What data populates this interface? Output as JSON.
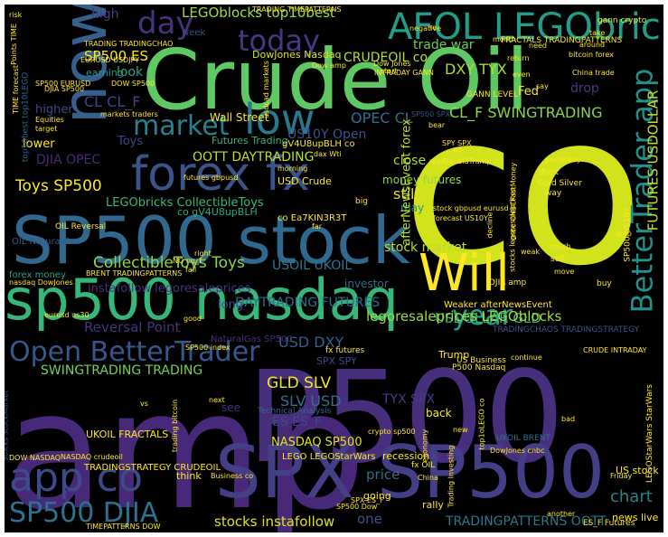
{
  "words": [
    {
      "text": "amp",
      "color": "#482878"
    },
    {
      "text": "P500",
      "color": "#472f7d"
    },
    {
      "text": "co",
      "color": "#d2e21b"
    },
    {
      "text": "Crude Oil",
      "color": "#5ec962"
    },
    {
      "text": "SPX SP500",
      "color": "#433e85"
    },
    {
      "text": "SP500 stock",
      "color": "#31688e"
    },
    {
      "text": "sp500 nasdaq",
      "color": "#35b779"
    },
    {
      "text": "Will",
      "color": "#fde725"
    },
    {
      "text": "forex fx",
      "color": "#3b528b"
    },
    {
      "text": "now",
      "color": "#355f8d"
    },
    {
      "text": "AFOL LEGObricks",
      "color": "#1f9e89"
    },
    {
      "text": "app co",
      "color": "#3e4a89"
    },
    {
      "text": "SP500 DJIA",
      "color": "#2c728e"
    },
    {
      "text": "Open BetterTrader",
      "color": "#39568c"
    },
    {
      "text": "BetterTrader app",
      "color": "#21918c"
    },
    {
      "text": "low",
      "color": "#2a788e"
    },
    {
      "text": "market",
      "color": "#26828e"
    },
    {
      "text": "today",
      "color": "#443a83"
    },
    {
      "text": "day",
      "color": "#46337e"
    },
    {
      "text": "year",
      "color": "#1fa088"
    },
    {
      "text": "LEGOblocks top10best",
      "color": "#a2da37"
    },
    {
      "text": "DowJones Nasdaq",
      "color": "#d8e219"
    },
    {
      "text": "trade war",
      "color": "#6ccd5a"
    },
    {
      "text": "SP500 ES",
      "color": "#fde725"
    },
    {
      "text": "CL CL_F",
      "color": "#404588"
    },
    {
      "text": "CRUDEOIL co",
      "color": "#b5de2b"
    },
    {
      "text": "DXY TYX",
      "color": "#addc30"
    },
    {
      "text": "OPEC CL",
      "color": "#2d708e"
    },
    {
      "text": "CL_F SWINGTRADING",
      "color": "#89d548"
    },
    {
      "text": "OOTT DAYTRADING",
      "color": "#bddf26"
    },
    {
      "text": "Toys SP500",
      "color": "#fde725"
    },
    {
      "text": "LEGObricks CollectibleToys",
      "color": "#38b977"
    },
    {
      "text": "CollectibleToys Toys",
      "color": "#8bd646"
    },
    {
      "text": "USOIL UKOIL",
      "color": "#2a778e"
    },
    {
      "text": "stock market",
      "color": "#b8de29"
    },
    {
      "text": "DAYTRADING FUTURES",
      "color": "#2e6e8e"
    },
    {
      "text": "USDOLLAR GLD",
      "color": "#35b779"
    },
    {
      "text": "legoresaleprices LEGOblocks",
      "color": "#9fda3a"
    },
    {
      "text": "Reversal Point",
      "color": "#463480"
    },
    {
      "text": "SWINGTRADING TRADING",
      "color": "#75d054"
    },
    {
      "text": "GLD SLV",
      "color": "#f1e51d"
    },
    {
      "text": "SLV USD",
      "color": "#2c718e"
    },
    {
      "text": "ES ES_F",
      "color": "#3f4889"
    },
    {
      "text": "TYX SPX",
      "color": "#433d84"
    },
    {
      "text": "NASDAQ SP500",
      "color": "#e2e418"
    },
    {
      "text": "stocks instafollow",
      "color": "#dde318"
    },
    {
      "text": "TRADINGPATTERNS OOTT",
      "color": "#29798e"
    },
    {
      "text": "chart",
      "color": "#25858e"
    },
    {
      "text": "price",
      "color": "#2e6f8e"
    },
    {
      "text": "one",
      "color": "#3b528b"
    },
    {
      "text": "US10Y Open",
      "color": "#3b528b"
    },
    {
      "text": "FUTURES USDOLLAR",
      "color": "#cae11f"
    },
    {
      "text": "Fed",
      "color": "#fde725"
    },
    {
      "text": "drop",
      "color": "#443a83"
    },
    {
      "text": "still",
      "color": "#e7e419"
    },
    {
      "text": "close",
      "color": "#b0dd2f"
    },
    {
      "text": "Toys",
      "color": "#3f4889"
    },
    {
      "text": "high",
      "color": "#433e85"
    },
    {
      "text": "look",
      "color": "#21a585"
    },
    {
      "text": "Wall Street",
      "color": "#fde725"
    },
    {
      "text": "Futures Trading",
      "color": "#31b57b"
    },
    {
      "text": "lower",
      "color": "#fde725"
    },
    {
      "text": "higher",
      "color": "#3f4788"
    },
    {
      "text": "earning",
      "color": "#1f968b"
    },
    {
      "text": "week",
      "color": "#3e4c8a"
    },
    {
      "text": "forex money",
      "color": "#20a386"
    },
    {
      "text": "instafollow legoresaleprices",
      "color": "#46327e"
    },
    {
      "text": "long",
      "color": "#3d4e8a"
    },
    {
      "text": "may",
      "color": "#1f9a8a"
    },
    {
      "text": "money futures",
      "color": "#95d840"
    },
    {
      "text": "investor",
      "color": "#2e6d8e"
    },
    {
      "text": "DJIA OPEC",
      "color": "#472a7a"
    },
    {
      "text": "USD DXY",
      "color": "#355f8d"
    },
    {
      "text": "USD Crude",
      "color": "#fde725"
    },
    {
      "text": "co gV4U8upBLH",
      "color": "#26ad81"
    },
    {
      "text": "co Ea7KIN3R3T",
      "color": "#fde725"
    },
    {
      "text": "gV4U8upBLH co",
      "color": "#fde725"
    },
    {
      "text": "afterNewsEvent forex",
      "color": "#bade28"
    },
    {
      "text": "Weaker afterNewsEvent",
      "color": "#fde725"
    },
    {
      "text": "DJIA amp",
      "color": "#fde725"
    },
    {
      "text": "Trump",
      "color": "#fde725"
    },
    {
      "text": "SPX SPY",
      "color": "#3f4889"
    },
    {
      "text": "US Business",
      "color": "#fde725"
    },
    {
      "text": "P500 Nasdaq",
      "color": "#fde725"
    },
    {
      "text": "TRADINGCHAOS TRADINGSTRATEGY",
      "color": "#3b528b"
    },
    {
      "text": "TRADINGSTRATEGY CRUDEOIL",
      "color": "#fde725"
    },
    {
      "text": "UKOIL FRACTALS",
      "color": "#fde725"
    },
    {
      "text": "UKOIL BRENT",
      "color": "#2c728e"
    },
    {
      "text": "LEGO LEGOStarWars",
      "color": "#fde725"
    },
    {
      "text": "recession",
      "color": "#fde725"
    },
    {
      "text": "back",
      "color": "#fde725"
    },
    {
      "text": "see",
      "color": "#46337e"
    },
    {
      "text": "think",
      "color": "#fde725"
    },
    {
      "text": "news live",
      "color": "#fde725"
    },
    {
      "text": "rally",
      "color": "#fde725"
    },
    {
      "text": "going",
      "color": "#fde725"
    },
    {
      "text": "US stock",
      "color": "#fde725"
    },
    {
      "text": "crypto sp500",
      "color": "#fde725"
    },
    {
      "text": "economy",
      "color": "#fde725"
    },
    {
      "text": "Technical Analysis",
      "color": "#31688e"
    },
    {
      "text": "fx futures",
      "color": "#fde725"
    },
    {
      "text": "fx OIL",
      "color": "#fde725"
    },
    {
      "text": "NaturalGas SP500",
      "color": "#472d7b"
    },
    {
      "text": "SP500 index",
      "color": "#fde725"
    },
    {
      "text": "Business co",
      "color": "#fde725"
    },
    {
      "text": "OIL Reversal",
      "color": "#fde725"
    },
    {
      "text": "OIL NaturalGas",
      "color": "#39568c"
    },
    {
      "text": "BRENT TRADINGPATTERNS",
      "color": "#fde725"
    },
    {
      "text": "NQ nq_f",
      "color": "#fde725"
    },
    {
      "text": "fall",
      "color": "#fde725"
    },
    {
      "text": "right",
      "color": "#fde725"
    },
    {
      "text": "good",
      "color": "#fde725"
    },
    {
      "text": "eurusd us30",
      "color": "#fde725"
    },
    {
      "text": "nasdaq DowJones",
      "color": "#fde725"
    },
    {
      "text": "futures gbpusd",
      "color": "#fde725"
    },
    {
      "text": "morning",
      "color": "#fde725"
    },
    {
      "text": "dax Wti",
      "color": "#fde725"
    },
    {
      "text": "big",
      "color": "#fde725"
    },
    {
      "text": "far",
      "color": "#fde725"
    },
    {
      "text": "amp",
      "color": "#fde725"
    },
    {
      "text": "go",
      "color": "#fde725"
    },
    {
      "text": "realDonaldTrump",
      "color": "#fde725"
    },
    {
      "text": "short",
      "color": "#fde725"
    },
    {
      "text": "Gold Silver",
      "color": "#fde725"
    },
    {
      "text": "way",
      "color": "#fde725"
    },
    {
      "text": "yesterday",
      "color": "#fde725"
    },
    {
      "text": "forecast US10Y",
      "color": "#fde725"
    },
    {
      "text": "stock gbpusd eurusd",
      "color": "#fde725"
    },
    {
      "text": "decline",
      "color": "#fde725"
    },
    {
      "text": "much",
      "color": "#fde725"
    },
    {
      "text": "sell",
      "color": "#fde725"
    },
    {
      "text": "move",
      "color": "#fde725"
    },
    {
      "text": "buy",
      "color": "#fde725"
    },
    {
      "text": "weak",
      "color": "#fde725"
    },
    {
      "text": "continue",
      "color": "#fde725"
    },
    {
      "text": "CRUDE INTRADAY",
      "color": "#fde725"
    },
    {
      "text": "another",
      "color": "#fde725"
    },
    {
      "text": "ES_F Futures",
      "color": "#fde725"
    },
    {
      "text": "Friday",
      "color": "#fde725"
    },
    {
      "text": "bad",
      "color": "#fde725"
    },
    {
      "text": "new",
      "color": "#fde725"
    },
    {
      "text": "next",
      "color": "#fde725"
    },
    {
      "text": "vs",
      "color": "#fde725"
    },
    {
      "text": "trading bitcoin",
      "color": "#fde725"
    },
    {
      "text": "Stocks StockMarket",
      "color": "#3b528b"
    },
    {
      "text": "NASDAQ crudeoil",
      "color": "#fde725"
    },
    {
      "text": "DOW NASDAQ",
      "color": "#fde725"
    },
    {
      "text": "TIMEPATTERNS DOW",
      "color": "#fde725"
    },
    {
      "text": "SP500 Dow",
      "color": "#fde725"
    },
    {
      "text": "China",
      "color": "#fde725"
    },
    {
      "text": "SPX ES_F",
      "color": "#fde725"
    },
    {
      "text": "Trading Investing",
      "color": "#fde725"
    },
    {
      "text": "DowJones cnbc",
      "color": "#fde725"
    },
    {
      "text": "top1oLEGO co",
      "color": "#fde725"
    },
    {
      "text": "LEGOStarWars StarWars",
      "color": "#fde725"
    },
    {
      "text": "stocks legoresaleprices",
      "color": "#fde725"
    },
    {
      "text": "SP500 US10Y",
      "color": "#fde725"
    },
    {
      "text": "INTRADAY GANN",
      "color": "#fde725"
    },
    {
      "text": "GANN LEVEL",
      "color": "#fde725"
    },
    {
      "text": "Dow Jones",
      "color": "#fde725"
    },
    {
      "text": "Dow amp",
      "color": "#fde725"
    },
    {
      "text": "re",
      "color": "#fde725"
    },
    {
      "text": "month",
      "color": "#fde725"
    },
    {
      "text": "take",
      "color": "#fde725"
    },
    {
      "text": "gann crypto",
      "color": "#fde725"
    },
    {
      "text": "around",
      "color": "#fde725"
    },
    {
      "text": "need",
      "color": "#fde725"
    },
    {
      "text": "bitcoin forex",
      "color": "#fde725"
    },
    {
      "text": "China trade",
      "color": "#fde725"
    },
    {
      "text": "return",
      "color": "#fde725"
    },
    {
      "text": "even",
      "color": "#fde725"
    },
    {
      "text": "say",
      "color": "#fde725"
    },
    {
      "text": "start",
      "color": "#fde725"
    },
    {
      "text": "FRACTALS TRADINGPATTERNS",
      "color": "#fde725"
    },
    {
      "text": "negative",
      "color": "#fde725"
    },
    {
      "text": "TRADING TIMEPATTERNS",
      "color": "#fde725"
    },
    {
      "text": "TRADING TRADINGCHAO",
      "color": "#fde725"
    },
    {
      "text": "EURUSD USDJPY",
      "color": "#fde725"
    },
    {
      "text": "SP500 EURUSD",
      "color": "#fde725"
    },
    {
      "text": "DJIA SP500",
      "color": "#fde725"
    },
    {
      "text": "DOW SP500",
      "color": "#fde725"
    },
    {
      "text": "markets traders",
      "color": "#fde725"
    },
    {
      "text": "usdcad markets",
      "color": "#fde725"
    },
    {
      "text": "Equities",
      "color": "#fde725"
    },
    {
      "text": "target",
      "color": "#fde725"
    },
    {
      "text": "TIME forecast",
      "color": "#fde725"
    },
    {
      "text": "top10best top10LEGO",
      "color": "#31688e"
    },
    {
      "text": "Points TIME",
      "color": "#fde725"
    },
    {
      "text": "risk",
      "color": "#fde725"
    },
    {
      "text": "SP500 SPX",
      "color": "#3b528b"
    },
    {
      "text": "SPY SPX",
      "color": "#fde725"
    },
    {
      "text": "bear",
      "color": "#fde725"
    },
    {
      "text": "cnbc CNBCFastMoney",
      "color": "#fde725"
    }
  ]
}
